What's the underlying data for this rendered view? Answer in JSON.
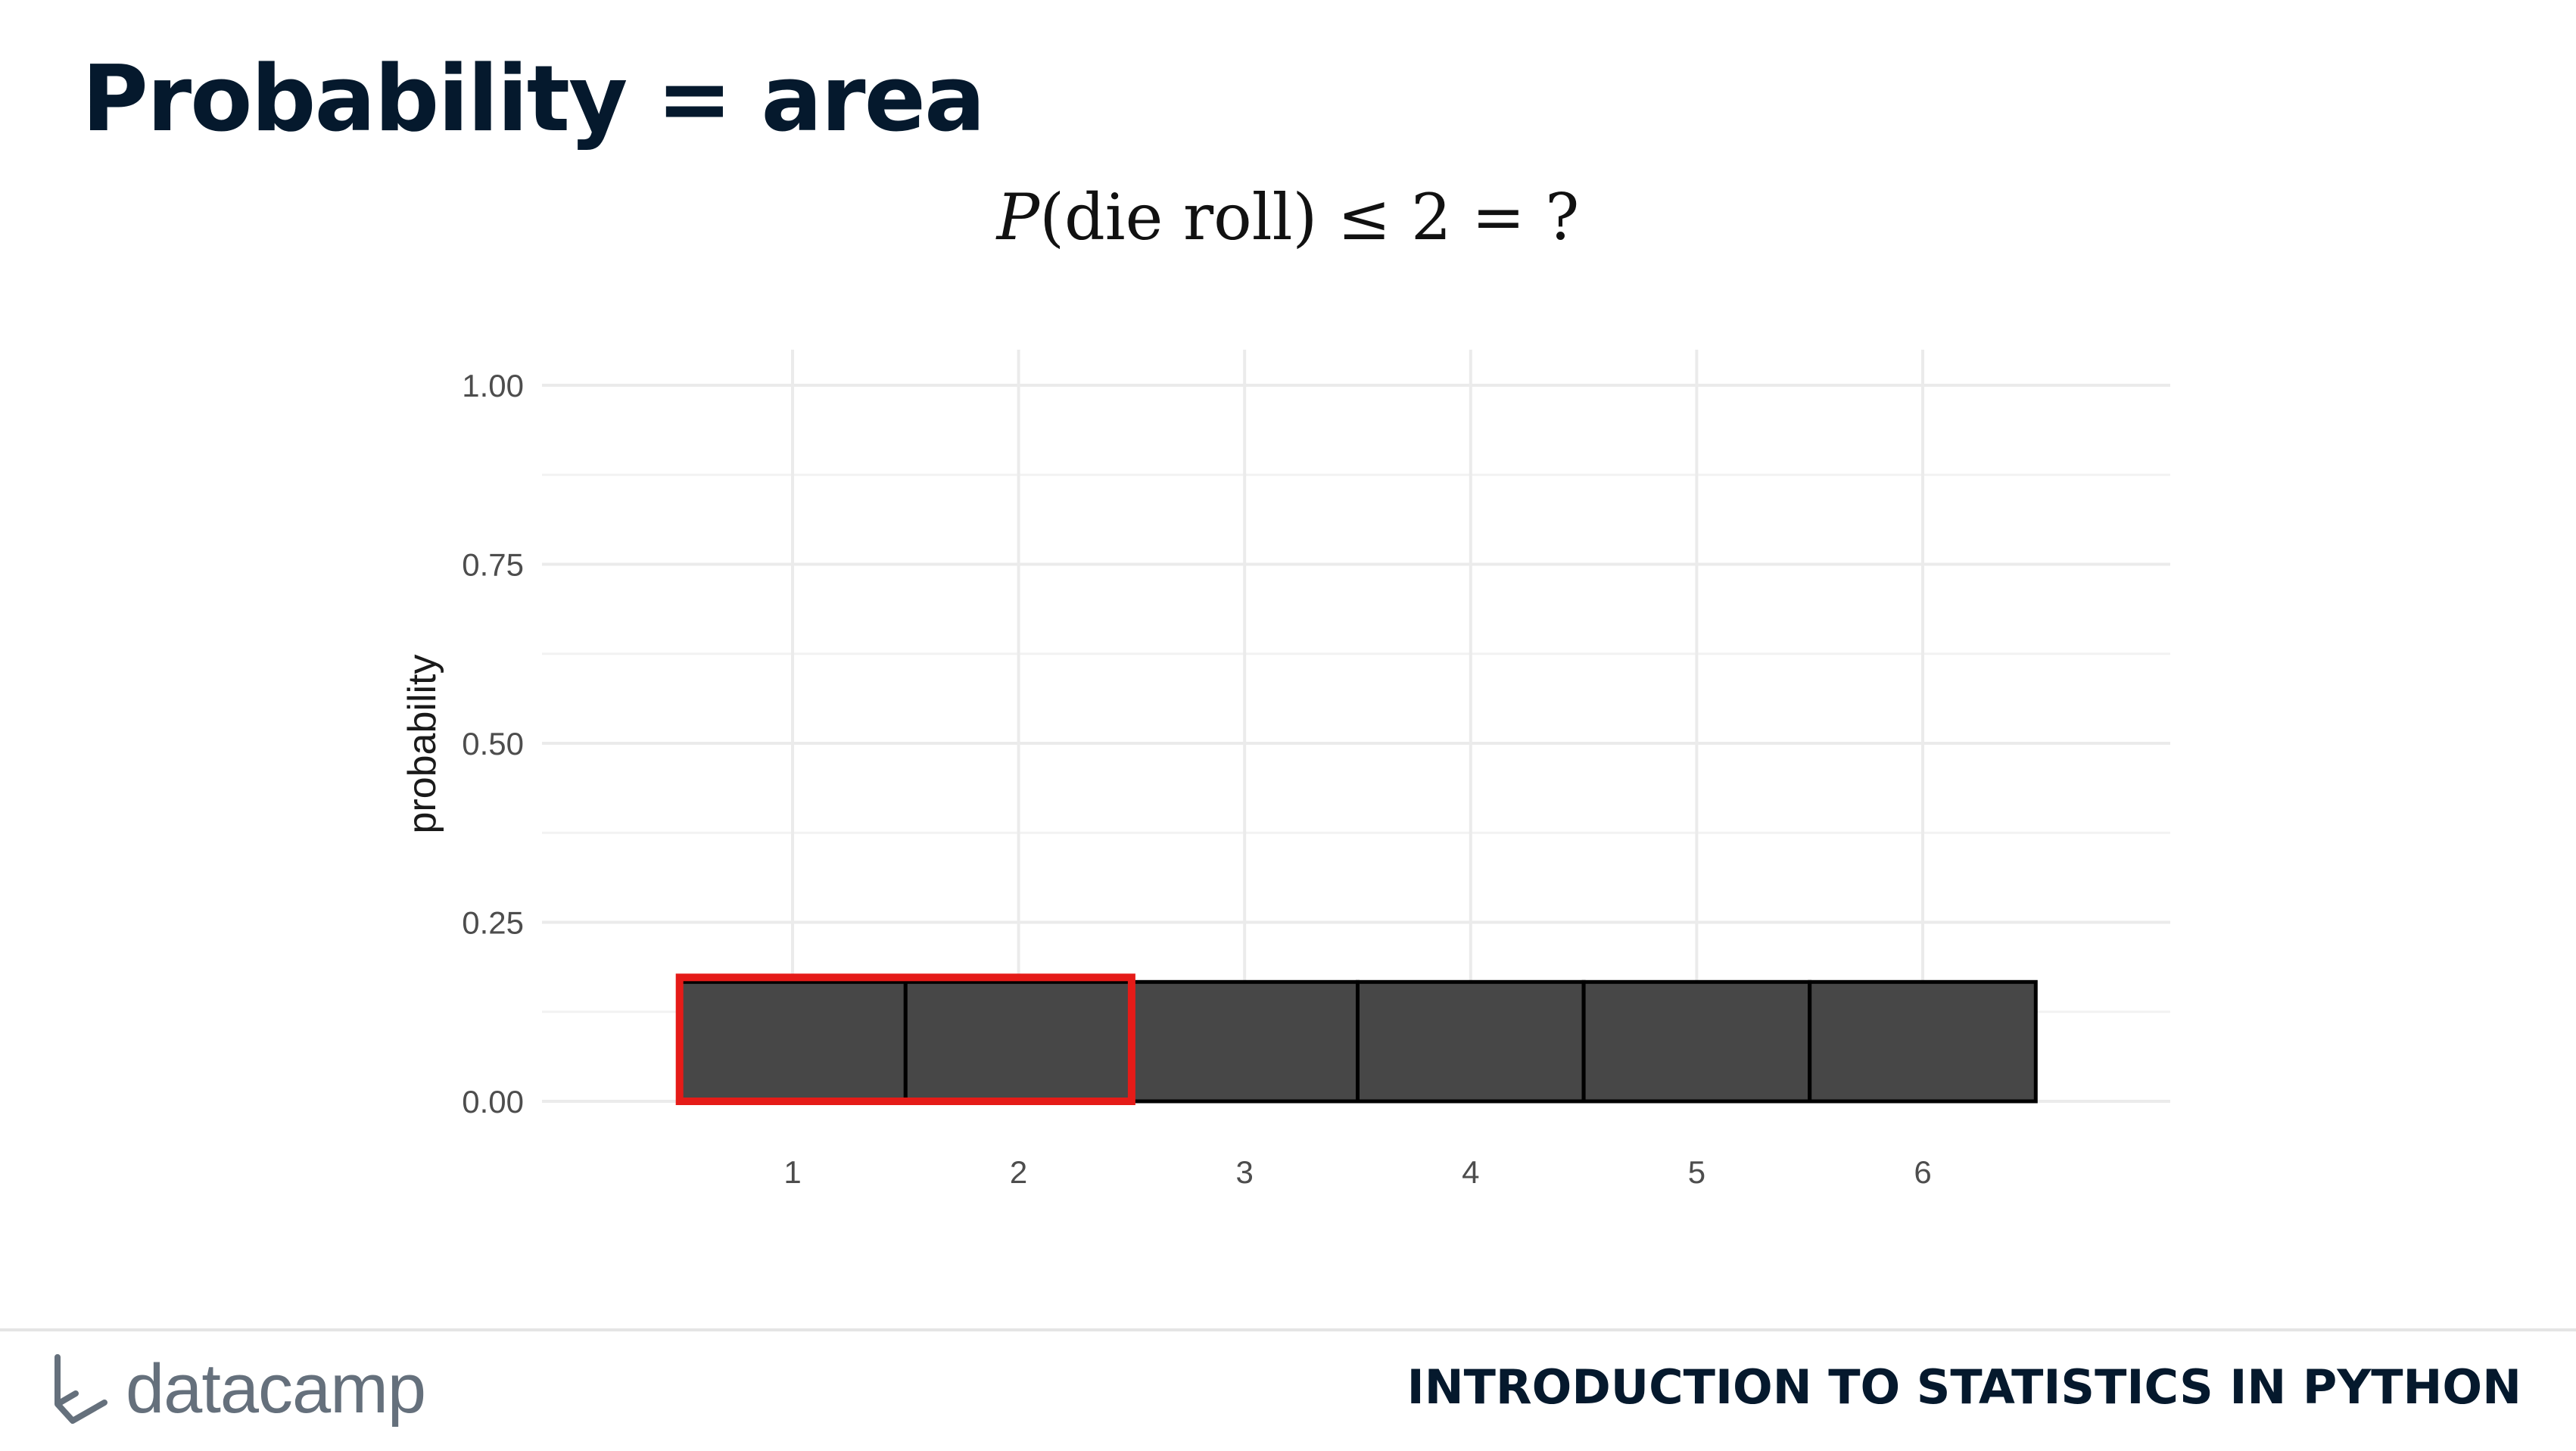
{
  "slide": {
    "title": "Probability = area",
    "formula": {
      "symbol": "P",
      "argument": "(die roll)",
      "relation": " ≤ 2 = ?"
    }
  },
  "footer": {
    "brand": "datacamp",
    "course": "INTRODUCTION TO STATISTICS IN PYTHON",
    "logo_icon": "datacamp-logo-icon"
  },
  "colors": {
    "bar_fill": "#474747",
    "bar_edge": "#000000",
    "highlight": "#e51b18",
    "title": "#05192d"
  },
  "chart_data": {
    "type": "bar",
    "categories": [
      "1",
      "2",
      "3",
      "4",
      "5",
      "6"
    ],
    "values": [
      0.1667,
      0.1667,
      0.1667,
      0.1667,
      0.1667,
      0.1667
    ],
    "highlighted_categories": [
      "1",
      "2"
    ],
    "xlabel": "",
    "ylabel": "probability",
    "ylim": [
      0,
      1
    ],
    "yticks": [
      "0.00",
      "0.25",
      "0.50",
      "0.75",
      "1.00"
    ],
    "grid": true,
    "legend": "none"
  }
}
